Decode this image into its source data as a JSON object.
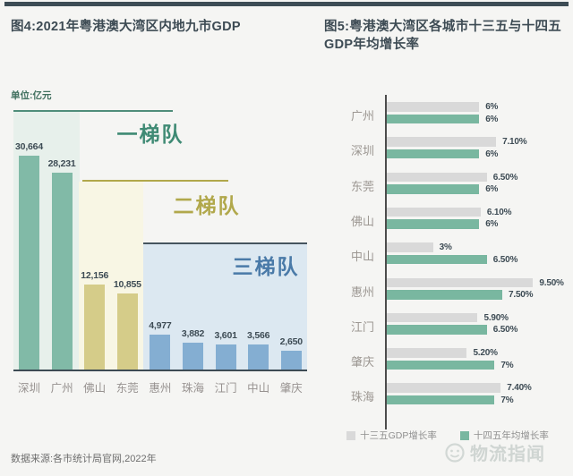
{
  "page": {
    "source_note": "数据来源:各市统计局官网,2022年",
    "watermark": "物流指闻"
  },
  "colors": {
    "background": "#f5f5f3",
    "top_rule": "#3d4c55",
    "title_text": "#3d4b54",
    "unit_text": "#41705f",
    "axis": "#3d4b54",
    "right_axis": "#4c4c4c",
    "value_text": "#3d4b54",
    "category_text": "#979290",
    "legend_text": "#8f8f8f",
    "source_text": "#6e6e6e",
    "watermark_gray": "#c9d0cd"
  },
  "chart_data": [
    {
      "id": "figure4",
      "type": "bar",
      "title": "图4:2021年粤港澳大湾区内地九市GDP",
      "unit_label": "单位:亿元",
      "categories": [
        "深圳",
        "广州",
        "佛山",
        "东莞",
        "惠州",
        "珠海",
        "江门",
        "中山",
        "肇庆"
      ],
      "values": [
        30664,
        28231,
        12156,
        10855,
        4977,
        3882,
        3601,
        3566,
        2650
      ],
      "value_labels": [
        "30,664",
        "28,231",
        "12,156",
        "10,855",
        "4,977",
        "3,882",
        "3,601",
        "3,566",
        "2,650"
      ],
      "ylim": [
        0,
        37000
      ],
      "grid": false,
      "tier_of_bar": [
        0,
        0,
        1,
        1,
        2,
        2,
        2,
        2,
        2
      ],
      "tiers": [
        {
          "label": "一梯队",
          "cities": [
            "深圳",
            "广州"
          ],
          "label_color": "#3f8a74",
          "line_color": "#4f8d7a",
          "bg": "#e7f0eb",
          "bar_color": "#81baa7"
        },
        {
          "label": "二梯队",
          "cities": [
            "佛山",
            "东莞"
          ],
          "label_color": "#b1a84b",
          "line_color": "#b1a84b",
          "bg": "#f8f6e4",
          "bar_color": "#d5cc89"
        },
        {
          "label": "三梯队",
          "cities": [
            "惠州",
            "珠海",
            "江门",
            "中山",
            "肇庆"
          ],
          "label_color": "#4a7aa8",
          "line_color": "#46555f",
          "bg": "#dce8f1",
          "bar_color": "#84aed2"
        }
      ]
    },
    {
      "id": "figure5",
      "type": "bar",
      "orientation": "horizontal",
      "title": "图5:粤港澳大湾区各城市十三五与十四五GDP年均增长率",
      "categories": [
        "广州",
        "深圳",
        "东莞",
        "佛山",
        "中山",
        "惠州",
        "江门",
        "肇庆",
        "珠海"
      ],
      "series": [
        {
          "name": "十三五GDP增长率",
          "color": "#d9d9d9",
          "values": [
            6,
            7.1,
            6.5,
            6.1,
            3,
            9.5,
            5.9,
            5.2,
            7.4
          ],
          "labels": [
            "6%",
            "7.10%",
            "6.50%",
            "6.10%",
            "3%",
            "9.50%",
            "5.90%",
            "5.20%",
            "7.40%"
          ]
        },
        {
          "name": "十四五年均增长率",
          "color": "#79b7a0",
          "values": [
            6,
            6,
            6,
            6,
            6.5,
            7.5,
            6.5,
            7,
            7
          ],
          "labels": [
            "6%",
            "6%",
            "6%",
            "6%",
            "6.50%",
            "7.50%",
            "6.50%",
            "7%",
            "7%"
          ]
        }
      ],
      "xlim": [
        0,
        10
      ],
      "grid": false,
      "legend_position": "bottom"
    }
  ]
}
